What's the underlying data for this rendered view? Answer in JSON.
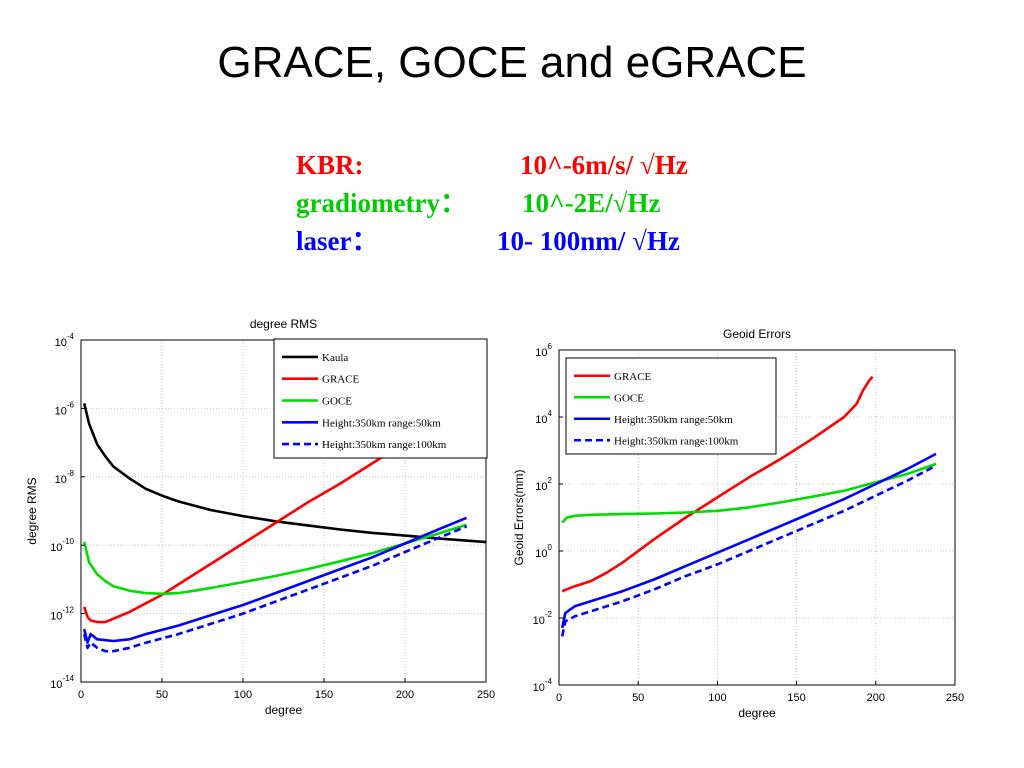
{
  "slide": {
    "title": "GRACE, GOCE  and eGRACE"
  },
  "specs": [
    {
      "label": "KBR:",
      "value": "10^-6m/s/ √Hz",
      "color": "#ff0000"
    },
    {
      "label": "gradiometry：",
      "value": "10^-2E/√Hz",
      "color": "#00cc00"
    },
    {
      "label": "laser：",
      "value": "10- 100nm/ √Hz",
      "color": "#0000ff"
    }
  ],
  "chart_data": [
    {
      "type": "line",
      "title": "degree RMS",
      "xlabel": "degree",
      "ylabel": "degree RMS",
      "xlim": [
        0,
        250
      ],
      "ylim_log10": [
        -14,
        -4
      ],
      "yscale": "log",
      "grid": true,
      "legend_position": "top-right",
      "x_ticks": [
        0,
        50,
        100,
        150,
        200,
        250
      ],
      "y_ticks": [
        {
          "base": "10",
          "exp": "-4"
        },
        {
          "base": "10",
          "exp": "-6"
        },
        {
          "base": "10",
          "exp": "-8"
        },
        {
          "base": "10",
          "exp": "-10"
        },
        {
          "base": "10",
          "exp": "-12"
        },
        {
          "base": "10",
          "exp": "-14"
        }
      ],
      "series": [
        {
          "name": "Kaula",
          "color": "#000000",
          "dash": false,
          "x": [
            2,
            5,
            10,
            15,
            20,
            30,
            40,
            50,
            60,
            80,
            100,
            120,
            140,
            160,
            180,
            200,
            220,
            250
          ],
          "log10_y": [
            -5.85,
            -6.45,
            -7.05,
            -7.4,
            -7.7,
            -8.05,
            -8.35,
            -8.55,
            -8.72,
            -8.97,
            -9.15,
            -9.3,
            -9.42,
            -9.54,
            -9.64,
            -9.72,
            -9.8,
            -9.91
          ]
        },
        {
          "name": "GRACE",
          "color": "#ff0000",
          "dash": false,
          "x": [
            2,
            4,
            6,
            10,
            15,
            20,
            30,
            40,
            50,
            60,
            80,
            100,
            120,
            140,
            160,
            180,
            190
          ],
          "log10_y": [
            -11.8,
            -12.1,
            -12.2,
            -12.25,
            -12.25,
            -12.15,
            -11.95,
            -11.7,
            -11.45,
            -11.15,
            -10.55,
            -9.95,
            -9.35,
            -8.75,
            -8.2,
            -7.6,
            -7.3
          ]
        },
        {
          "name": "GOCE",
          "color": "#00dd00",
          "dash": false,
          "x": [
            2,
            5,
            10,
            15,
            20,
            30,
            40,
            50,
            60,
            70,
            80,
            100,
            120,
            140,
            160,
            180,
            200,
            220,
            238
          ],
          "log10_y": [
            -9.9,
            -10.5,
            -10.85,
            -11.05,
            -11.2,
            -11.33,
            -11.4,
            -11.42,
            -11.4,
            -11.33,
            -11.25,
            -11.08,
            -10.9,
            -10.7,
            -10.47,
            -10.23,
            -9.95,
            -9.67,
            -9.4
          ]
        },
        {
          "name": "Height:350km range:50km",
          "color": "#0000ff",
          "dash": false,
          "x": [
            2,
            4,
            6,
            10,
            20,
            30,
            40,
            60,
            80,
            100,
            120,
            140,
            160,
            180,
            200,
            220,
            238
          ],
          "log10_y": [
            -12.45,
            -12.85,
            -12.6,
            -12.75,
            -12.8,
            -12.75,
            -12.6,
            -12.35,
            -12.05,
            -11.75,
            -11.4,
            -11.05,
            -10.7,
            -10.35,
            -9.95,
            -9.55,
            -9.2
          ]
        },
        {
          "name": "Height:350km range:100km",
          "color": "#0000ff",
          "dash": true,
          "x": [
            2,
            4,
            6,
            10,
            15,
            20,
            30,
            40,
            60,
            80,
            100,
            120,
            140,
            160,
            180,
            200,
            220,
            238
          ],
          "log10_y": [
            -12.6,
            -13.0,
            -12.85,
            -13.0,
            -13.1,
            -13.1,
            -13.0,
            -12.85,
            -12.6,
            -12.3,
            -12.0,
            -11.65,
            -11.3,
            -10.95,
            -10.6,
            -10.2,
            -9.8,
            -9.45
          ]
        }
      ]
    },
    {
      "type": "line",
      "title": "Geoid Errors",
      "xlabel": "degree",
      "ylabel": "Geoid Errors(mm)",
      "xlim": [
        0,
        250
      ],
      "ylim_log10": [
        -4,
        6
      ],
      "yscale": "log",
      "grid": true,
      "legend_position": "top-left",
      "x_ticks": [
        0,
        50,
        100,
        150,
        200,
        250
      ],
      "y_ticks": [
        {
          "base": "10",
          "exp": "6"
        },
        {
          "base": "10",
          "exp": "4"
        },
        {
          "base": "10",
          "exp": "2"
        },
        {
          "base": "10",
          "exp": "0"
        },
        {
          "base": "10",
          "exp": "-2"
        },
        {
          "base": "10",
          "exp": "-4"
        }
      ],
      "series": [
        {
          "name": "GRACE",
          "color": "#ff0000",
          "dash": false,
          "x": [
            2,
            10,
            20,
            30,
            40,
            60,
            80,
            100,
            120,
            140,
            160,
            180,
            188,
            192,
            196,
            198
          ],
          "log10_y": [
            -1.2,
            -1.05,
            -0.9,
            -0.65,
            -0.35,
            0.35,
            1.0,
            1.6,
            2.2,
            2.75,
            3.35,
            4.0,
            4.4,
            4.8,
            5.1,
            5.2
          ]
        },
        {
          "name": "GOCE",
          "color": "#00dd00",
          "dash": false,
          "x": [
            2,
            5,
            10,
            20,
            40,
            60,
            80,
            100,
            120,
            140,
            160,
            180,
            200,
            220,
            238
          ],
          "log10_y": [
            0.85,
            1.0,
            1.05,
            1.08,
            1.1,
            1.12,
            1.15,
            1.2,
            1.3,
            1.45,
            1.62,
            1.8,
            2.05,
            2.3,
            2.6
          ]
        },
        {
          "name": "Height:350km range:50km",
          "color": "#0000ff",
          "dash": false,
          "x": [
            2,
            4,
            10,
            20,
            40,
            60,
            80,
            100,
            120,
            140,
            160,
            180,
            200,
            220,
            238
          ],
          "log10_y": [
            -2.3,
            -1.85,
            -1.65,
            -1.5,
            -1.2,
            -0.85,
            -0.45,
            -0.05,
            0.35,
            0.75,
            1.15,
            1.55,
            2.0,
            2.45,
            2.9
          ]
        },
        {
          "name": "Height:350km range:100km",
          "color": "#0000ff",
          "dash": true,
          "x": [
            2,
            4,
            10,
            20,
            40,
            60,
            80,
            100,
            120,
            140,
            160,
            180,
            200,
            220,
            238
          ],
          "log10_y": [
            -2.55,
            -2.1,
            -1.95,
            -1.8,
            -1.5,
            -1.15,
            -0.75,
            -0.4,
            0.0,
            0.4,
            0.8,
            1.2,
            1.65,
            2.1,
            2.55
          ]
        }
      ]
    }
  ]
}
